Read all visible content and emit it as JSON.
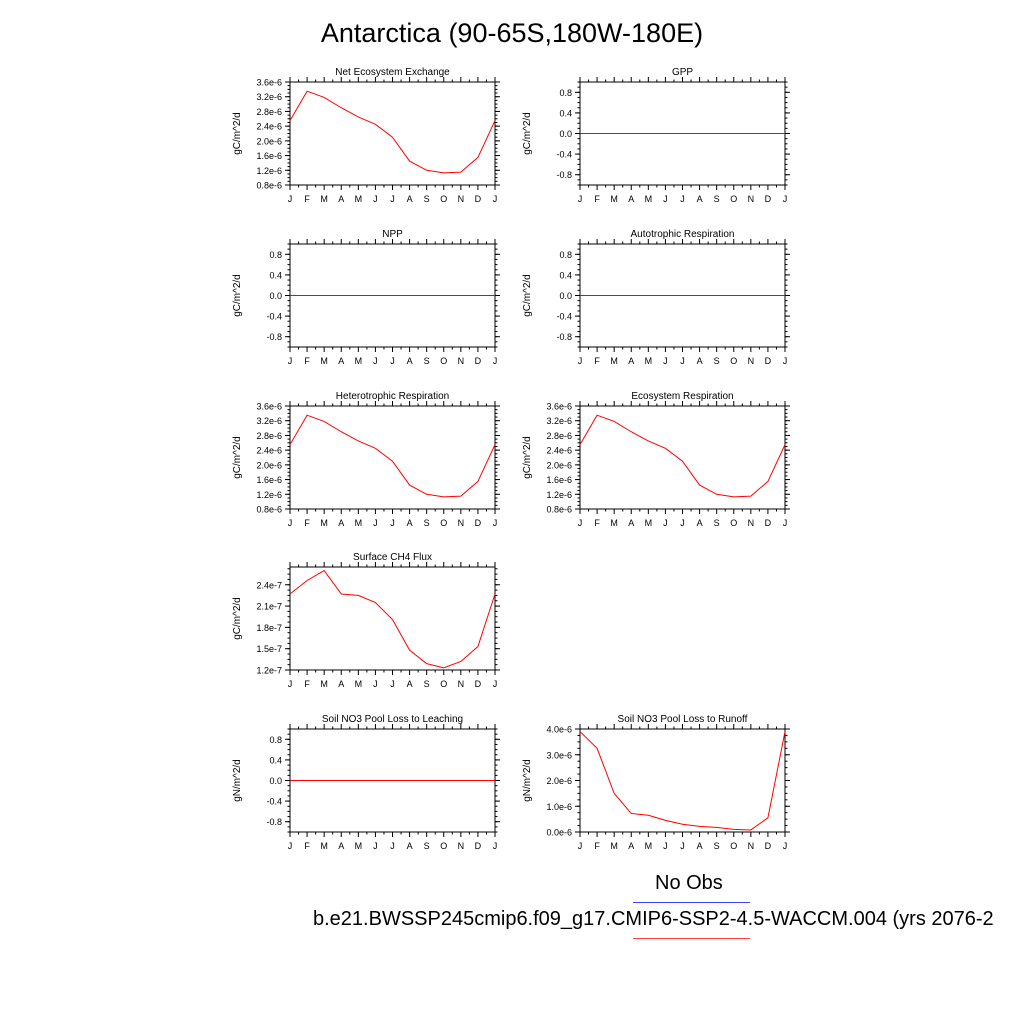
{
  "title": "Antarctica (90-65S,180W-180E)",
  "colors": {
    "model": "#ff0000",
    "obs": "#4040ff",
    "axis": "#000000"
  },
  "legend": {
    "obs_label": "No Obs",
    "case_label": "b.e21.BWSSP245cmip6.f09_g17.CMIP6-SSP2-4.5-WACCM.004 (yrs 2076-2"
  },
  "chart_data": [
    {
      "type": "line",
      "title": "Net Ecosystem Exchange",
      "ylabel": "gC/m^2/d",
      "xlabel": "",
      "categories": [
        "J",
        "F",
        "M",
        "A",
        "M",
        "J",
        "J",
        "A",
        "S",
        "O",
        "N",
        "D",
        "J"
      ],
      "ylim": [
        8e-07,
        3.6e-06
      ],
      "yticks": [
        8e-07,
        1.2e-06,
        1.6e-06,
        2e-06,
        2.4e-06,
        2.8e-06,
        3.2e-06,
        3.6e-06
      ],
      "yticklabels": [
        "0.8e-6",
        "1.2e-6",
        "1.6e-6",
        "2.0e-6",
        "2.4e-6",
        "2.8e-6",
        "3.2e-6",
        "3.6e-6"
      ],
      "series": [
        {
          "values": [
            2.55e-06,
            3.35e-06,
            3.18e-06,
            2.9e-06,
            2.65e-06,
            2.45e-06,
            2.1e-06,
            1.45e-06,
            1.2e-06,
            1.13e-06,
            1.15e-06,
            1.55e-06,
            2.55e-06
          ]
        }
      ]
    },
    {
      "type": "line",
      "title": "GPP",
      "ylabel": "gC/m^2/d",
      "xlabel": "",
      "categories": [
        "J",
        "F",
        "M",
        "A",
        "M",
        "J",
        "J",
        "A",
        "S",
        "O",
        "N",
        "D",
        "J"
      ],
      "ylim": [
        -1.0,
        1.0
      ],
      "yticks": [
        -0.8,
        -0.4,
        0.0,
        0.4,
        0.8
      ],
      "yticklabels": [
        "-0.8",
        "-0.4",
        "0.0",
        "0.4",
        "0.8"
      ],
      "series": [
        {
          "values": [
            0,
            0,
            0,
            0,
            0,
            0,
            0,
            0,
            0,
            0,
            0,
            0,
            0
          ]
        }
      ]
    },
    {
      "type": "line",
      "title": "NPP",
      "ylabel": "gC/m^2/d",
      "xlabel": "",
      "categories": [
        "J",
        "F",
        "M",
        "A",
        "M",
        "J",
        "J",
        "A",
        "S",
        "O",
        "N",
        "D",
        "J"
      ],
      "ylim": [
        -1.0,
        1.0
      ],
      "yticks": [
        -0.8,
        -0.4,
        0.0,
        0.4,
        0.8
      ],
      "yticklabels": [
        "-0.8",
        "-0.4",
        "0.0",
        "0.4",
        "0.8"
      ],
      "series": [
        {
          "values": [
            0,
            0,
            0,
            0,
            0,
            0,
            0,
            0,
            0,
            0,
            0,
            0,
            0
          ]
        }
      ]
    },
    {
      "type": "line",
      "title": "Autotrophic Respiration",
      "ylabel": "gC/m^2/d",
      "xlabel": "",
      "categories": [
        "J",
        "F",
        "M",
        "A",
        "M",
        "J",
        "J",
        "A",
        "S",
        "O",
        "N",
        "D",
        "J"
      ],
      "ylim": [
        -1.0,
        1.0
      ],
      "yticks": [
        -0.8,
        -0.4,
        0.0,
        0.4,
        0.8
      ],
      "yticklabels": [
        "-0.8",
        "-0.4",
        "0.0",
        "0.4",
        "0.8"
      ],
      "series": [
        {
          "values": [
            0,
            0,
            0,
            0,
            0,
            0,
            0,
            0,
            0,
            0,
            0,
            0,
            0
          ]
        }
      ]
    },
    {
      "type": "line",
      "title": "Heterotrophic Respiration",
      "ylabel": "gC/m^2/d",
      "xlabel": "",
      "categories": [
        "J",
        "F",
        "M",
        "A",
        "M",
        "J",
        "J",
        "A",
        "S",
        "O",
        "N",
        "D",
        "J"
      ],
      "ylim": [
        8e-07,
        3.6e-06
      ],
      "yticks": [
        8e-07,
        1.2e-06,
        1.6e-06,
        2e-06,
        2.4e-06,
        2.8e-06,
        3.2e-06,
        3.6e-06
      ],
      "yticklabels": [
        "0.8e-6",
        "1.2e-6",
        "1.6e-6",
        "2.0e-6",
        "2.4e-6",
        "2.8e-6",
        "3.2e-6",
        "3.6e-6"
      ],
      "series": [
        {
          "values": [
            2.55e-06,
            3.35e-06,
            3.18e-06,
            2.9e-06,
            2.65e-06,
            2.45e-06,
            2.1e-06,
            1.45e-06,
            1.2e-06,
            1.13e-06,
            1.15e-06,
            1.55e-06,
            2.55e-06
          ]
        }
      ]
    },
    {
      "type": "line",
      "title": "Ecosystem Respiration",
      "ylabel": "gC/m^2/d",
      "xlabel": "",
      "categories": [
        "J",
        "F",
        "M",
        "A",
        "M",
        "J",
        "J",
        "A",
        "S",
        "O",
        "N",
        "D",
        "J"
      ],
      "ylim": [
        8e-07,
        3.6e-06
      ],
      "yticks": [
        8e-07,
        1.2e-06,
        1.6e-06,
        2e-06,
        2.4e-06,
        2.8e-06,
        3.2e-06,
        3.6e-06
      ],
      "yticklabels": [
        "0.8e-6",
        "1.2e-6",
        "1.6e-6",
        "2.0e-6",
        "2.4e-6",
        "2.8e-6",
        "3.2e-6",
        "3.6e-6"
      ],
      "series": [
        {
          "values": [
            2.55e-06,
            3.35e-06,
            3.18e-06,
            2.9e-06,
            2.65e-06,
            2.45e-06,
            2.1e-06,
            1.45e-06,
            1.2e-06,
            1.13e-06,
            1.15e-06,
            1.55e-06,
            2.55e-06
          ]
        }
      ]
    },
    {
      "type": "line",
      "title": "Surface CH4 Flux",
      "ylabel": "gC/m^2/d",
      "xlabel": "",
      "categories": [
        "J",
        "F",
        "M",
        "A",
        "M",
        "J",
        "J",
        "A",
        "S",
        "O",
        "N",
        "D",
        "J"
      ],
      "ylim": [
        1.2e-07,
        2.65e-07
      ],
      "yticks": [
        1.2e-07,
        1.5e-07,
        1.8e-07,
        2.1e-07,
        2.4e-07
      ],
      "yticklabels": [
        "1.2e-7",
        "1.5e-7",
        "1.8e-7",
        "2.1e-7",
        "2.4e-7"
      ],
      "series": [
        {
          "values": [
            2.27e-07,
            2.46e-07,
            2.6e-07,
            2.27e-07,
            2.25e-07,
            2.15e-07,
            1.91e-07,
            1.48e-07,
            1.29e-07,
            1.23e-07,
            1.32e-07,
            1.53e-07,
            2.27e-07
          ]
        }
      ]
    },
    {
      "type": "line",
      "title": "Soil NO3 Pool Loss to Leaching",
      "ylabel": "gN/m^2/d",
      "xlabel": "",
      "categories": [
        "J",
        "F",
        "M",
        "A",
        "M",
        "J",
        "J",
        "A",
        "S",
        "O",
        "N",
        "D",
        "J"
      ],
      "ylim": [
        -1.0,
        1.0
      ],
      "yticks": [
        -0.8,
        -0.4,
        0.0,
        0.4,
        0.8
      ],
      "yticklabels": [
        "-0.8",
        "-0.4",
        "0.0",
        "0.4",
        "0.8"
      ],
      "series": [
        {
          "values": [
            0,
            0,
            0,
            0,
            0,
            0,
            0,
            0,
            0,
            0,
            0,
            0,
            0
          ]
        }
      ]
    },
    {
      "type": "line",
      "title": "Soil NO3 Pool Loss to Runoff",
      "ylabel": "gN/m^2/d",
      "xlabel": "",
      "categories": [
        "J",
        "F",
        "M",
        "A",
        "M",
        "J",
        "J",
        "A",
        "S",
        "O",
        "N",
        "D",
        "J"
      ],
      "ylim": [
        0.0,
        4e-06
      ],
      "yticks": [
        0.0,
        1e-06,
        2e-06,
        3e-06,
        4e-06
      ],
      "yticklabels": [
        "0.0e-6",
        "1.0e-6",
        "2.0e-6",
        "3.0e-6",
        "4.0e-6"
      ],
      "series": [
        {
          "values": [
            3.9e-06,
            3.25e-06,
            1.5e-06,
            7.2e-07,
            6.5e-07,
            4.5e-07,
            3e-07,
            2.2e-07,
            1.8e-07,
            1e-07,
            8e-08,
            5.5e-07,
            3.9e-06
          ]
        }
      ]
    }
  ]
}
